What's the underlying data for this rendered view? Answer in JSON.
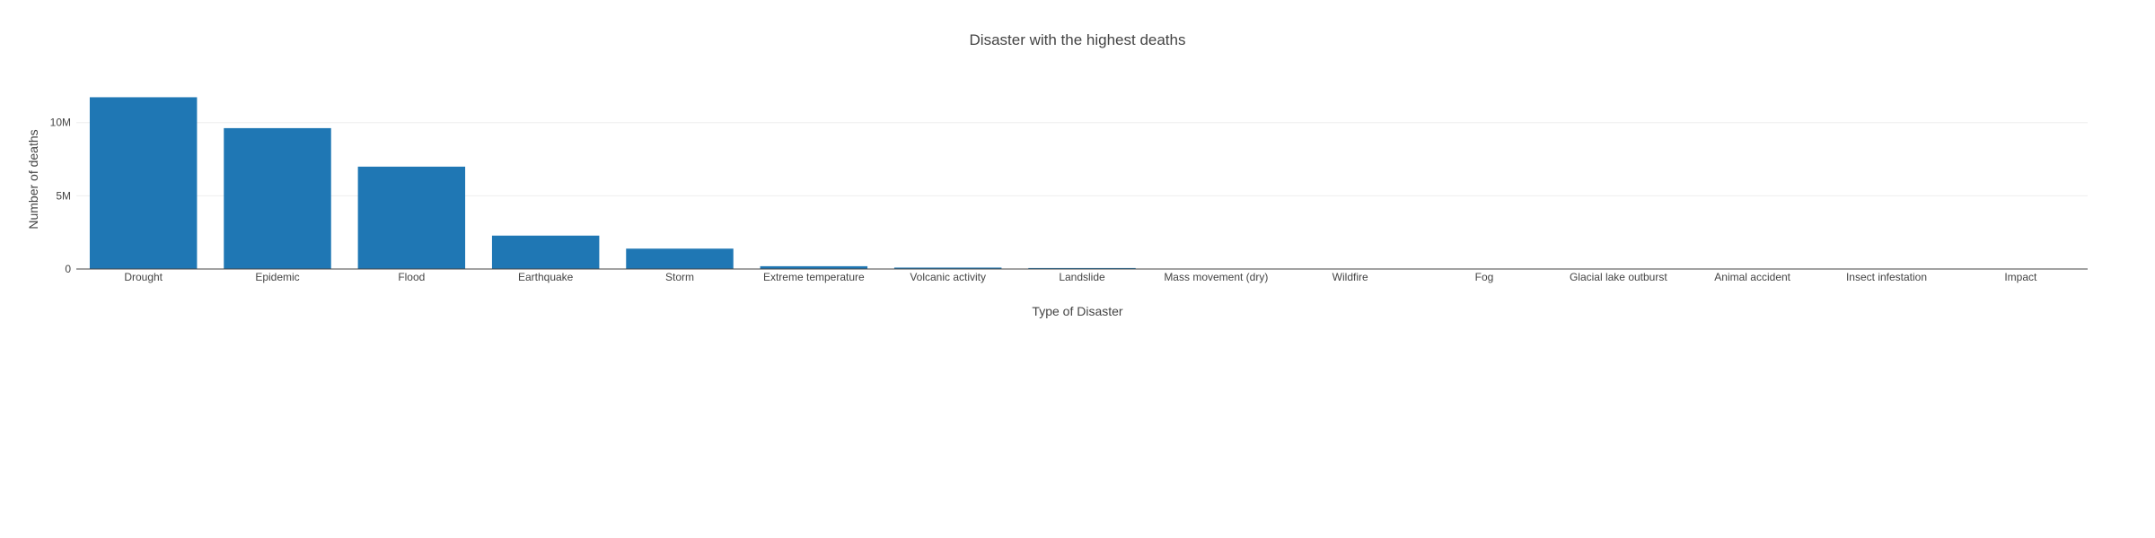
{
  "chart_data": {
    "type": "bar",
    "title": "Disaster with the highest deaths",
    "xlabel": "Type of Disaster",
    "ylabel": "Number of deaths",
    "categories": [
      "Drought",
      "Epidemic",
      "Flood",
      "Earthquake",
      "Storm",
      "Extreme temperature",
      "Volcanic activity",
      "Landslide",
      "Mass movement (dry)",
      "Wildfire",
      "Fog",
      "Glacial lake outburst",
      "Animal accident",
      "Insect infestation",
      "Impact"
    ],
    "values": [
      11730000,
      9620000,
      6990000,
      2280000,
      1390000,
      190000,
      96000,
      66000,
      5000,
      4000,
      4000,
      4000,
      0,
      0,
      0
    ],
    "ylim": [
      0,
      12370000
    ],
    "yticks": [
      {
        "value": 0,
        "label": "0"
      },
      {
        "value": 5000000,
        "label": "5M"
      },
      {
        "value": 10000000,
        "label": "10M"
      }
    ],
    "grid": true,
    "colors": {
      "bar": "#1f77b4",
      "grid": "#eeeeee",
      "axis": "#444444",
      "text": "#444444"
    }
  }
}
